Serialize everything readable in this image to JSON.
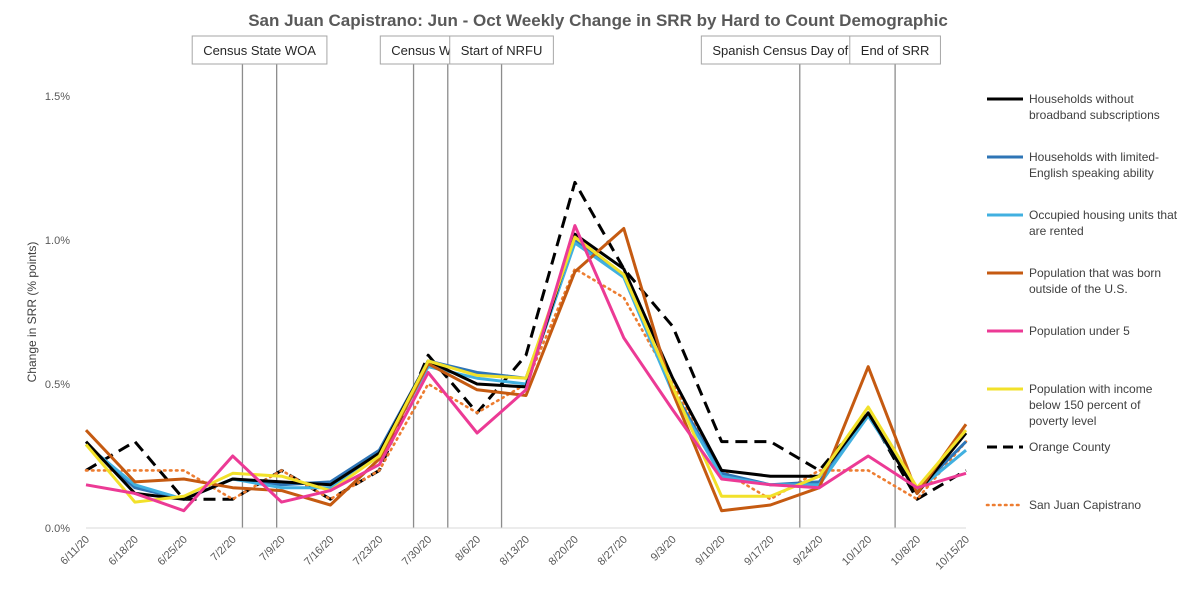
{
  "chart_data": {
    "type": "line",
    "title": "San Juan Capistrano: Jun - Oct Weekly Change in SRR by Hard to Count Demographic",
    "ylabel": "Change in SRR (% points)",
    "xlabel": "",
    "ylim": [
      0,
      1.5
    ],
    "yticks": [
      {
        "value": 0,
        "label": "0.0%"
      },
      {
        "value": 0.5,
        "label": "0.5%"
      },
      {
        "value": 1.0,
        "label": "1.0%"
      },
      {
        "value": 1.5,
        "label": "1.5%"
      }
    ],
    "grid": false,
    "legend_position": "right",
    "categories": [
      "6/11/20",
      "6/18/20",
      "6/25/20",
      "7/2/20",
      "7/9/20",
      "7/16/20",
      "7/23/20",
      "7/30/20",
      "8/6/20",
      "8/13/20",
      "8/20/20",
      "8/27/20",
      "9/3/20",
      "9/10/20",
      "9/17/20",
      "9/24/20",
      "10/1/20",
      "10/8/20",
      "10/15/20"
    ],
    "events": [
      {
        "label": "Census State WOA",
        "lines": [
          6.4,
          7.8
        ]
      },
      {
        "label": "Census WOA",
        "lines": [
          13.4,
          14.8
        ]
      },
      {
        "label": "Start of NRFU",
        "lines": [
          17.0
        ]
      },
      {
        "label": "Spanish Census Day of Action",
        "lines": [
          29.2
        ]
      },
      {
        "label": "End of SRR",
        "lines": [
          33.1
        ]
      }
    ],
    "series": [
      {
        "name_lines": [
          "Households without",
          "broadband subscriptions"
        ],
        "color": "#000000",
        "dash": "solid",
        "values": [
          0.3,
          0.12,
          0.1,
          0.17,
          0.16,
          0.15,
          0.26,
          0.58,
          0.5,
          0.49,
          1.02,
          0.9,
          0.52,
          0.2,
          0.18,
          0.18,
          0.4,
          0.12,
          0.33
        ]
      },
      {
        "name_lines": [
          "Households with limited-",
          "English speaking ability"
        ],
        "color": "#2E75B6",
        "dash": "solid",
        "values": [
          0.29,
          0.14,
          0.1,
          0.17,
          0.15,
          0.16,
          0.27,
          0.58,
          0.54,
          0.52,
          1.0,
          0.88,
          0.48,
          0.19,
          0.15,
          0.16,
          0.39,
          0.13,
          0.3
        ]
      },
      {
        "name_lines": [
          "Occupied housing units that",
          "are rented"
        ],
        "color": "#41B0E0",
        "dash": "solid",
        "values": [
          0.29,
          0.15,
          0.1,
          0.17,
          0.14,
          0.14,
          0.25,
          0.56,
          0.52,
          0.5,
          0.99,
          0.87,
          0.47,
          0.18,
          0.15,
          0.15,
          0.39,
          0.13,
          0.27
        ]
      },
      {
        "name_lines": [
          "Population that was born",
          "outside of the U.S."
        ],
        "color": "#C55A11",
        "dash": "solid",
        "values": [
          0.34,
          0.16,
          0.17,
          0.14,
          0.13,
          0.08,
          0.24,
          0.57,
          0.48,
          0.46,
          0.89,
          1.04,
          0.47,
          0.06,
          0.08,
          0.14,
          0.56,
          0.12,
          0.36
        ]
      },
      {
        "name_lines": [
          "Population under 5"
        ],
        "color": "#EC3A95",
        "dash": "solid",
        "values": [
          0.15,
          0.12,
          0.06,
          0.25,
          0.09,
          0.13,
          0.22,
          0.54,
          0.33,
          0.48,
          1.05,
          0.66,
          0.41,
          0.17,
          0.15,
          0.14,
          0.25,
          0.14,
          0.19
        ]
      },
      {
        "name_lines": [
          "Population with income",
          "below 150 percent of",
          "poverty level"
        ],
        "color": "#F2E12A",
        "dash": "solid",
        "values": [
          0.29,
          0.09,
          0.11,
          0.19,
          0.18,
          0.13,
          0.25,
          0.58,
          0.53,
          0.52,
          1.01,
          0.88,
          0.49,
          0.11,
          0.11,
          0.18,
          0.42,
          0.14,
          0.34
        ]
      },
      {
        "name_lines": [
          "Orange County"
        ],
        "color": "#000000",
        "dash": "long",
        "values": [
          0.2,
          0.3,
          0.1,
          0.1,
          0.2,
          0.1,
          0.2,
          0.6,
          0.4,
          0.6,
          1.2,
          0.9,
          0.7,
          0.3,
          0.3,
          0.2,
          0.4,
          0.1,
          0.2
        ]
      },
      {
        "name_lines": [
          "San Juan Capistrano"
        ],
        "color": "#ED7D31",
        "dash": "dot",
        "values": [
          0.2,
          0.2,
          0.2,
          0.1,
          0.2,
          0.1,
          0.2,
          0.5,
          0.4,
          0.5,
          0.9,
          0.8,
          0.5,
          0.2,
          0.1,
          0.2,
          0.2,
          0.1,
          0.3
        ]
      }
    ]
  }
}
